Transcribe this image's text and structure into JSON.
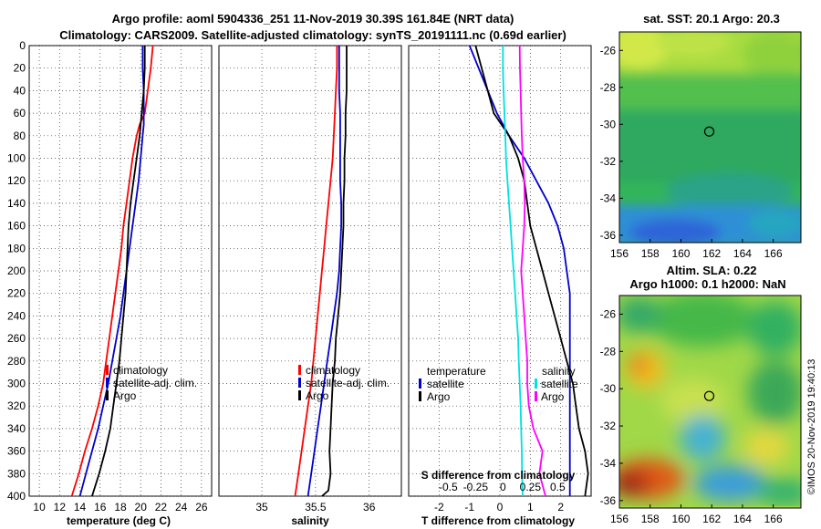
{
  "title": {
    "line1": "Argo profile: aoml 5904336_251 11-Nov-2019 30.39S 161.84E (NRT data)",
    "line2": "Climatology: CARS2009. Satellite-adjusted climatology: synTS_20191111.nc (0.69d earlier)"
  },
  "colors": {
    "climatology": "#ff0000",
    "satellite": "#0000cc",
    "argo": "#000000",
    "temp_diff": "#00e0e0",
    "sal_diff": "#ff00ff"
  },
  "credit": "©IMOS 20-Nov-2019 19:40:13",
  "chart_data": [
    {
      "id": "temperature",
      "type": "line",
      "xlabel": "temperature (deg C)",
      "ylabel": "",
      "xlim": [
        9,
        27
      ],
      "ylim": [
        400,
        0
      ],
      "xticks": [
        "10",
        "12",
        "14",
        "16",
        "18",
        "20",
        "22",
        "24",
        "26"
      ],
      "xtick_values": [
        10,
        12,
        14,
        16,
        18,
        20,
        22,
        24,
        26
      ],
      "yticks": [
        "0",
        "20",
        "40",
        "60",
        "80",
        "100",
        "120",
        "140",
        "160",
        "180",
        "200",
        "220",
        "240",
        "260",
        "280",
        "300",
        "320",
        "340",
        "360",
        "380",
        "400"
      ],
      "ytick_values": [
        0,
        20,
        40,
        60,
        80,
        100,
        120,
        140,
        160,
        180,
        200,
        220,
        240,
        260,
        280,
        300,
        320,
        340,
        360,
        380,
        400
      ],
      "legend": [
        "climatology",
        "satellite-adj. clim.",
        "Argo"
      ],
      "series": [
        {
          "name": "climatology",
          "color": "#ff0000",
          "x": [
            21.2,
            21.0,
            20.7,
            20.4,
            19.9,
            19.6,
            19.2,
            18.9,
            18.6,
            18.3,
            18.1,
            17.8,
            17.5,
            17.2,
            16.9,
            16.6,
            16.3,
            15.8,
            15.2,
            14.5,
            13.9,
            13.2
          ],
          "y": [
            0,
            20,
            40,
            60,
            70,
            80,
            100,
            120,
            140,
            160,
            180,
            200,
            220,
            240,
            260,
            280,
            300,
            320,
            340,
            360,
            380,
            400
          ]
        },
        {
          "name": "satellite-adj. clim.",
          "color": "#0000cc",
          "x": [
            20.2,
            20.2,
            20.3,
            20.3,
            20.3,
            20.2,
            20.0,
            19.8,
            19.5,
            19.2,
            18.9,
            18.6,
            18.3,
            18.0,
            17.6,
            17.2,
            16.8,
            16.3,
            15.8,
            15.2,
            14.6,
            14.0
          ],
          "y": [
            0,
            20,
            40,
            60,
            70,
            80,
            100,
            120,
            140,
            160,
            180,
            200,
            220,
            240,
            260,
            280,
            300,
            320,
            340,
            360,
            380,
            400
          ]
        },
        {
          "name": "Argo",
          "color": "#000000",
          "x": [
            20.4,
            20.4,
            20.3,
            20.1,
            20.0,
            19.9,
            19.6,
            19.3,
            19.0,
            18.8,
            18.7,
            18.6,
            18.5,
            18.3,
            18.1,
            17.9,
            17.6,
            17.3,
            17.0,
            16.5,
            15.9,
            15.2
          ],
          "y": [
            0,
            20,
            40,
            60,
            70,
            80,
            100,
            120,
            140,
            160,
            180,
            200,
            220,
            240,
            260,
            280,
            300,
            320,
            340,
            360,
            380,
            400
          ]
        }
      ]
    },
    {
      "id": "salinity",
      "type": "line",
      "xlabel": "salinity",
      "xlim": [
        34.6,
        36.3
      ],
      "ylim": [
        400,
        0
      ],
      "xticks": [
        "35",
        "35.5",
        "36"
      ],
      "xtick_values": [
        35,
        35.5,
        36
      ],
      "legend": [
        "climatology",
        "satellite-adj. clim.",
        "Argo"
      ],
      "series": [
        {
          "name": "climatology",
          "color": "#ff0000",
          "x": [
            35.7,
            35.7,
            35.69,
            35.68,
            35.67,
            35.66,
            35.64,
            35.62,
            35.6,
            35.58,
            35.56,
            35.54,
            35.52,
            35.5,
            35.48,
            35.46,
            35.43,
            35.4,
            35.37,
            35.34,
            35.31,
            35.28
          ],
          "y": [
            0,
            20,
            40,
            60,
            80,
            100,
            120,
            140,
            160,
            180,
            200,
            220,
            240,
            260,
            280,
            300,
            320,
            340,
            360,
            380,
            400,
            410
          ]
        },
        {
          "name": "satellite-adj. clim.",
          "color": "#0000cc",
          "x": [
            35.72,
            35.72,
            35.72,
            35.73,
            35.73,
            35.73,
            35.73,
            35.74,
            35.74,
            35.73,
            35.72,
            35.7,
            35.67,
            35.64,
            35.61,
            35.58,
            35.55,
            35.52,
            35.49,
            35.46,
            35.43
          ],
          "y": [
            0,
            20,
            40,
            60,
            80,
            100,
            120,
            140,
            160,
            180,
            200,
            220,
            240,
            260,
            280,
            300,
            320,
            340,
            360,
            380,
            400
          ]
        },
        {
          "name": "Argo",
          "color": "#000000",
          "x": [
            35.79,
            35.79,
            35.79,
            35.78,
            35.78,
            35.77,
            35.77,
            35.76,
            35.76,
            35.75,
            35.74,
            35.73,
            35.71,
            35.69,
            35.68,
            35.66,
            35.65,
            35.64,
            35.63,
            35.64,
            35.62,
            35.56
          ],
          "y": [
            0,
            20,
            40,
            60,
            80,
            100,
            120,
            140,
            160,
            180,
            200,
            220,
            240,
            260,
            280,
            300,
            320,
            340,
            360,
            380,
            395,
            400
          ]
        }
      ]
    },
    {
      "id": "difference",
      "type": "line",
      "xlabel": "T difference from climatology",
      "top_axis_label": "S difference from climatology",
      "xlim": [
        -3,
        3
      ],
      "ylim": [
        400,
        0
      ],
      "xticks": [
        "-2",
        "-1",
        "0",
        "1",
        "2"
      ],
      "xtick_values": [
        -2,
        -1,
        0,
        1,
        2
      ],
      "sticks": [
        "-0.5",
        "-0.25",
        "0",
        "0.25",
        "0.5"
      ],
      "stick_values": [
        -1.7,
        -0.8,
        0.1,
        1.0,
        1.9
      ],
      "legend_temperature_title": "temperature",
      "legend_salinity_title": "salinity",
      "legend_temperature": [
        "satellite",
        "Argo"
      ],
      "legend_salinity": [
        "satellite",
        "Argo"
      ],
      "series": [
        {
          "name": "temperature satellite",
          "color": "#0000cc",
          "x": [
            -1.0,
            -0.7,
            -0.4,
            -0.1,
            0.3,
            0.8,
            1.2,
            1.6,
            1.9,
            2.1,
            2.2,
            2.3,
            2.3,
            2.3,
            2.3,
            2.3,
            2.3,
            2.3,
            2.3,
            2.3,
            2.3,
            2.3
          ],
          "y": [
            0,
            20,
            40,
            60,
            80,
            100,
            120,
            140,
            160,
            180,
            200,
            220,
            240,
            260,
            280,
            300,
            320,
            340,
            360,
            380,
            395,
            400
          ]
        },
        {
          "name": "temperature Argo",
          "color": "#000000",
          "x": [
            -0.8,
            -0.6,
            -0.4,
            -0.2,
            0.3,
            0.6,
            0.8,
            0.9,
            1.0,
            1.2,
            1.4,
            1.6,
            1.8,
            2.0,
            2.2,
            2.4,
            2.5,
            2.6,
            2.8,
            2.9,
            2.8
          ],
          "y": [
            0,
            20,
            40,
            60,
            80,
            100,
            120,
            140,
            160,
            180,
            200,
            220,
            240,
            260,
            280,
            300,
            320,
            340,
            360,
            380,
            400
          ]
        },
        {
          "name": "salinity satellite",
          "color": "#00e0e0",
          "x": [
            0.1,
            0.1,
            0.12,
            0.15,
            0.18,
            0.2,
            0.25,
            0.3,
            0.35,
            0.4,
            0.45,
            0.5,
            0.55,
            0.6,
            0.62,
            0.65,
            0.68,
            0.7,
            0.72,
            0.73,
            0.75
          ],
          "y": [
            0,
            20,
            40,
            60,
            80,
            100,
            120,
            140,
            160,
            180,
            200,
            220,
            240,
            260,
            280,
            300,
            320,
            340,
            360,
            380,
            400
          ]
        },
        {
          "name": "salinity Argo",
          "color": "#ff00ff",
          "x": [
            0.65,
            0.66,
            0.68,
            0.7,
            0.72,
            0.75,
            0.8,
            0.82,
            0.8,
            0.75,
            0.7,
            0.75,
            0.8,
            0.85,
            0.9,
            0.9,
            0.95,
            1.1,
            1.4,
            1.3,
            1.5
          ],
          "y": [
            0,
            20,
            40,
            60,
            80,
            100,
            120,
            140,
            160,
            180,
            200,
            220,
            240,
            260,
            280,
            300,
            320,
            340,
            360,
            380,
            400
          ]
        }
      ]
    },
    {
      "id": "sst_map",
      "type": "heatmap",
      "title": "sat. SST: 20.1 Argo: 20.3",
      "xlim": [
        156,
        167.8
      ],
      "ylim": [
        -36.4,
        -25
      ],
      "xticks": [
        "156",
        "158",
        "160",
        "162",
        "164",
        "166"
      ],
      "xtick_values": [
        156,
        158,
        160,
        162,
        164,
        166
      ],
      "yticks": [
        "-26",
        "-28",
        "-30",
        "-32",
        "-34",
        "-36"
      ],
      "ytick_values": [
        -26,
        -28,
        -30,
        -32,
        -34,
        -36
      ],
      "marker": {
        "lon": 161.84,
        "lat": -30.39
      }
    },
    {
      "id": "sla_map",
      "type": "heatmap",
      "title": "Altim. SLA: 0.22",
      "subtitle": "Argo h1000: 0.1 h2000: NaN",
      "xlim": [
        156,
        167.8
      ],
      "ylim": [
        -36.4,
        -25
      ],
      "xticks": [
        "156",
        "158",
        "160",
        "162",
        "164",
        "166"
      ],
      "xtick_values": [
        156,
        158,
        160,
        162,
        164,
        166
      ],
      "yticks": [
        "-26",
        "-28",
        "-30",
        "-32",
        "-34",
        "-36"
      ],
      "ytick_values": [
        -26,
        -28,
        -30,
        -32,
        -34,
        -36
      ],
      "marker": {
        "lon": 161.84,
        "lat": -30.39
      }
    }
  ]
}
